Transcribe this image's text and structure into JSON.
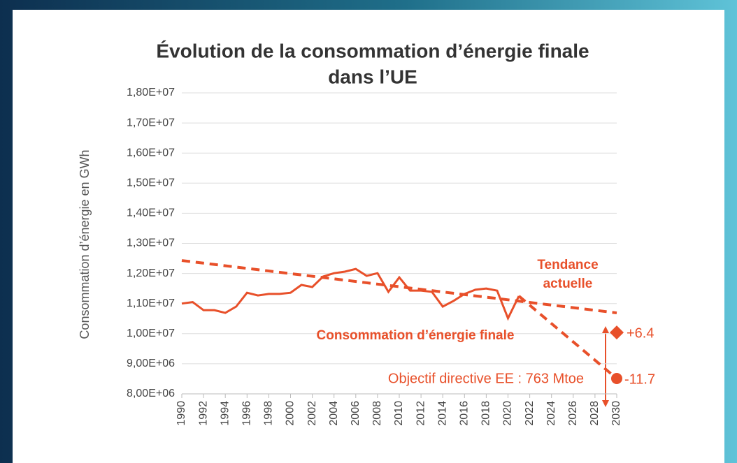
{
  "chart_data": {
    "type": "line",
    "title": [
      "Évolution de la consommation d’énergie finale",
      "dans l’UE"
    ],
    "y_label": "Consommation d’énergie en GWh",
    "xlim": [
      1990,
      2030
    ],
    "xticks": [
      1990,
      1992,
      1994,
      1996,
      1998,
      2000,
      2002,
      2004,
      2006,
      2008,
      2010,
      2012,
      2014,
      2016,
      2018,
      2020,
      2022,
      2024,
      2026,
      2028,
      2030
    ],
    "ylim": [
      8000000,
      18000000
    ],
    "yticks": [
      {
        "value": 8000000,
        "label": "8,00E+06"
      },
      {
        "value": 9000000,
        "label": "9,00E+06"
      },
      {
        "value": 10000000,
        "label": "1,00E+07"
      },
      {
        "value": 11000000,
        "label": "1,10E+07"
      },
      {
        "value": 12000000,
        "label": "1,20E+07"
      },
      {
        "value": 13000000,
        "label": "1,30E+07"
      },
      {
        "value": 14000000,
        "label": "1,40E+07"
      },
      {
        "value": 15000000,
        "label": "1,50E+07"
      },
      {
        "value": 16000000,
        "label": "1,60E+07"
      },
      {
        "value": 17000000,
        "label": "1,70E+07"
      },
      {
        "value": 18000000,
        "label": "1,80E+07"
      }
    ],
    "grid": true,
    "series": [
      {
        "color": "#e8502a",
        "dashed": false,
        "x": [
          1990,
          1991,
          1992,
          1993,
          1994,
          1995,
          1996,
          1997,
          1998,
          1999,
          2000,
          2001,
          2002,
          2003,
          2004,
          2005,
          2006,
          2007,
          2008,
          2009,
          2010,
          2011,
          2012,
          2013,
          2014,
          2015,
          2016,
          2017,
          2018,
          2019,
          2020,
          2021
        ],
        "values": [
          11000000,
          11050000,
          10780000,
          10780000,
          10690000,
          10900000,
          11360000,
          11270000,
          11320000,
          11320000,
          11360000,
          11620000,
          11550000,
          11900000,
          12010000,
          12060000,
          12150000,
          11920000,
          12010000,
          11390000,
          11870000,
          11430000,
          11430000,
          11390000,
          10900000,
          11090000,
          11320000,
          11460000,
          11500000,
          11430000,
          10510000,
          11250000
        ]
      },
      {
        "color": "#e8502a",
        "dashed": true,
        "x": [
          1990,
          2030
        ],
        "values": [
          12430000,
          10690000
        ]
      },
      {
        "color": "#e8502a",
        "dashed": true,
        "x": [
          2021,
          2030
        ],
        "values": [
          11250000,
          8510000
        ]
      }
    ],
    "points": [
      {
        "shape": "diamond",
        "color": "#e8502a",
        "x": 2030,
        "y": 10040000,
        "label": "+6.4"
      },
      {
        "shape": "circle",
        "color": "#e8502a",
        "x": 2030,
        "y": 8510000,
        "label": "-11.7"
      }
    ],
    "annotations": [
      {
        "lines": [
          "Tendance",
          "actuelle"
        ]
      },
      {
        "lines": [
          "Consommation d’énergie finale"
        ]
      },
      {
        "lines": [
          "Objectif directive EE : 763 Mtoe"
        ]
      }
    ]
  }
}
